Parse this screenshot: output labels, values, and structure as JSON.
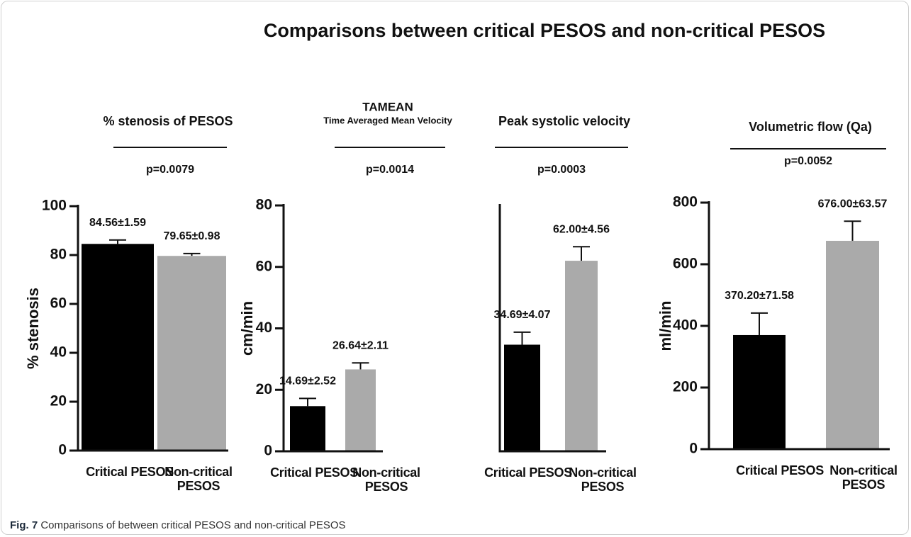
{
  "title": "Comparisons between critical PESOS and non-critical PESOS",
  "caption": {
    "label": "Fig. 7",
    "text": "Comparisons of between critical PESOS and non-critical PESOS"
  },
  "chart_data": [
    {
      "type": "bar",
      "title": "% stenosis of PESOS",
      "annotation": "p=0.0079",
      "y_label": "% stenosis",
      "categories": [
        "Critical PESOS",
        "Non-critical PESOS"
      ],
      "colors": [
        "#000000",
        "#aaaaaa"
      ],
      "values": [
        84.56,
        79.65
      ],
      "errors": [
        1.59,
        0.98
      ],
      "value_labels": [
        "84.56±1.59",
        "79.65±0.98"
      ],
      "ylim": [
        0,
        100
      ],
      "yticks": [
        0,
        20,
        40,
        60,
        80,
        100
      ]
    },
    {
      "type": "bar",
      "title": "TAMEAN",
      "subtitle": "Time Averaged Mean Velocity",
      "annotation": "p=0.0014",
      "y_label": "cm/min",
      "categories": [
        "Critical PESOS",
        "Non-critical PESOS"
      ],
      "colors": [
        "#000000",
        "#aaaaaa"
      ],
      "values": [
        14.69,
        26.64
      ],
      "errors": [
        2.52,
        2.11
      ],
      "value_labels": [
        "14.69±2.52",
        "26.64±2.11"
      ],
      "ylim": [
        0,
        80
      ],
      "yticks": [
        0,
        20,
        40,
        60,
        80
      ]
    },
    {
      "type": "bar",
      "title": "Peak systolic velocity",
      "annotation": "p=0.0003",
      "categories": [
        "Critical PESOS",
        "Non-critical PESOS"
      ],
      "colors": [
        "#000000",
        "#aaaaaa"
      ],
      "values": [
        34.69,
        62
      ],
      "errors": [
        4.07,
        4.56
      ],
      "value_labels": [
        "34.69±4.07",
        "62.00±4.56"
      ],
      "ylim": [
        0,
        80
      ]
    },
    {
      "type": "bar",
      "title": "Volumetric flow (Qa)",
      "annotation": "p=0.0052",
      "y_label": "ml/min",
      "categories": [
        "Critical PESOS",
        "Non-critical PESOS"
      ],
      "colors": [
        "#000000",
        "#aaaaaa"
      ],
      "values": [
        370.2,
        676
      ],
      "errors": [
        71.58,
        63.57
      ],
      "value_labels": [
        "370.20±71.58",
        "676.00±63.57"
      ],
      "ylim": [
        0,
        800
      ],
      "yticks": [
        0,
        200,
        400,
        600,
        800
      ]
    }
  ]
}
